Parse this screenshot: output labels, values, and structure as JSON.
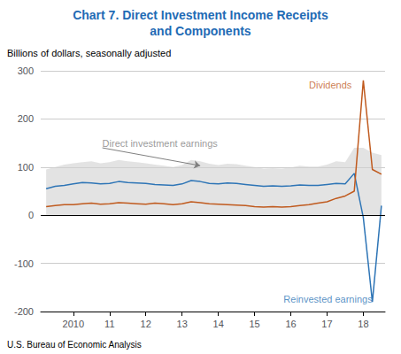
{
  "chart_data": {
    "type": "line",
    "title": "Chart 7. Direct Investment Income Receipts\nand Components",
    "subtitle": "Billions of dollars, seasonally adjusted",
    "title_color": "#1F6BB5",
    "footer": "U.S. Bureau of Economic Analysis",
    "x": [
      2009.25,
      2009.5,
      2009.75,
      2010.0,
      2010.25,
      2010.5,
      2010.75,
      2011.0,
      2011.25,
      2011.5,
      2011.75,
      2012.0,
      2012.25,
      2012.5,
      2012.75,
      2013.0,
      2013.25,
      2013.5,
      2013.75,
      2014.0,
      2014.25,
      2014.5,
      2014.75,
      2015.0,
      2015.25,
      2015.5,
      2015.75,
      2016.0,
      2016.25,
      2016.5,
      2016.75,
      2017.0,
      2017.25,
      2017.5,
      2017.75,
      2018.0,
      2018.25,
      2018.5
    ],
    "series": [
      {
        "name": "Direct investment earnings",
        "type": "area",
        "color": "#D0D0D0",
        "values": [
          95,
          100,
          105,
          108,
          110,
          112,
          108,
          110,
          115,
          112,
          110,
          108,
          105,
          103,
          100,
          104,
          115,
          112,
          107,
          104,
          107,
          106,
          103,
          100,
          97,
          98,
          97,
          99,
          103,
          101,
          101,
          105,
          112,
          110,
          140,
          140,
          130,
          125
        ],
        "lower": [
          0,
          0,
          0,
          0,
          0,
          0,
          0,
          0,
          0,
          0,
          0,
          0,
          0,
          0,
          0,
          0,
          0,
          0,
          0,
          0,
          0,
          0,
          0,
          0,
          0,
          0,
          0,
          0,
          0,
          0,
          0,
          0,
          0,
          0,
          0,
          0,
          0,
          0
        ]
      },
      {
        "name": "Reinvested earnings",
        "type": "line",
        "color": "#2E75B6",
        "values": [
          55,
          60,
          62,
          65,
          68,
          67,
          65,
          66,
          70,
          68,
          67,
          66,
          64,
          63,
          62,
          65,
          72,
          70,
          66,
          65,
          67,
          66,
          64,
          62,
          60,
          61,
          60,
          61,
          63,
          62,
          62,
          64,
          66,
          65,
          87,
          -5,
          -180,
          20
        ]
      },
      {
        "name": "Dividends",
        "type": "line",
        "color": "#C05A1E",
        "values": [
          18,
          20,
          22,
          22,
          24,
          25,
          23,
          24,
          26,
          25,
          24,
          23,
          25,
          24,
          22,
          24,
          28,
          26,
          24,
          23,
          22,
          21,
          20,
          18,
          17,
          18,
          17,
          18,
          20,
          22,
          25,
          28,
          35,
          40,
          50,
          280,
          95,
          85
        ]
      }
    ],
    "xlim": [
      2009.1,
      2018.6
    ],
    "xticks": [
      2010,
      {
        "value": 2011,
        "label": "11"
      },
      {
        "value": 2012,
        "label": "12"
      },
      {
        "value": 2013,
        "label": "13"
      },
      {
        "value": 2014,
        "label": "14"
      },
      {
        "value": 2015,
        "label": "15"
      },
      {
        "value": 2016,
        "label": "16"
      },
      {
        "value": 2017,
        "label": "17"
      },
      {
        "value": 2018,
        "label": "18"
      }
    ],
    "ylim": [
      -200,
      300
    ],
    "yticks": [
      -200,
      -100,
      0,
      100,
      200,
      300
    ],
    "grid": true,
    "grid_color": "#cccccc",
    "annotations": [
      {
        "text": "Direct investment earnings",
        "x": 2010.8,
        "y": 140,
        "color": "gray",
        "arrow_to": [
          2013.5,
          103
        ]
      },
      {
        "text": "Dividends",
        "x": 2016.5,
        "y": 260,
        "color": "#C05A1E"
      },
      {
        "text": "Reinvested earnings",
        "x": 2015.8,
        "y": -185,
        "color": "#2E75B6"
      }
    ]
  }
}
